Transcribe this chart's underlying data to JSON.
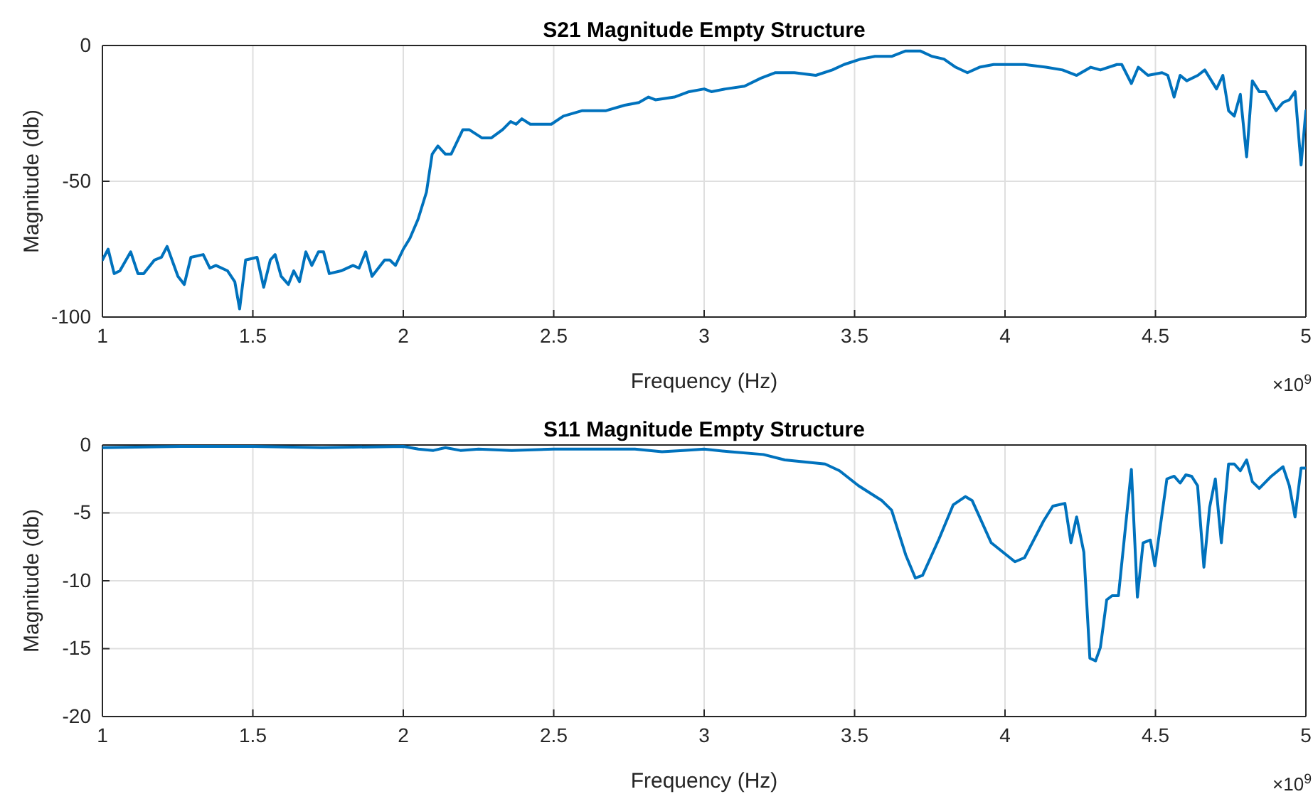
{
  "chart_data": [
    {
      "type": "line",
      "title": "S21 Magnitude Empty Structure",
      "xlabel": "Frequency (Hz)",
      "ylabel": "Magnitude (db)",
      "annotations": [
        "×10$^{9}$"
      ],
      "xlim": [
        1,
        5
      ],
      "xticks": [
        1,
        1.5,
        2,
        2.5,
        3,
        3.5,
        4,
        4.5,
        5
      ],
      "ylim": [
        -100,
        0
      ],
      "yticks": [
        -100,
        -50,
        0
      ],
      "grid": true,
      "marker": "none",
      "line_style": "solid",
      "series": [
        {
          "color": "#0072bd",
          "x": [
            1.0,
            1.019,
            1.039,
            1.058,
            1.094,
            1.118,
            1.137,
            1.173,
            1.196,
            1.215,
            1.251,
            1.272,
            1.294,
            1.335,
            1.357,
            1.377,
            1.416,
            1.44,
            1.456,
            1.476,
            1.514,
            1.536,
            1.558,
            1.574,
            1.594,
            1.618,
            1.636,
            1.655,
            1.676,
            1.696,
            1.718,
            1.735,
            1.754,
            1.793,
            1.833,
            1.853,
            1.875,
            1.896,
            1.938,
            1.955,
            1.974,
            2.0,
            2.022,
            2.049,
            2.077,
            2.096,
            2.115,
            2.14,
            2.159,
            2.198,
            2.219,
            2.261,
            2.293,
            2.33,
            2.357,
            2.375,
            2.394,
            2.422,
            2.492,
            2.532,
            2.595,
            2.634,
            2.674,
            2.736,
            2.783,
            2.815,
            2.838,
            2.901,
            2.95,
            3.0,
            3.024,
            3.071,
            3.134,
            3.189,
            3.237,
            3.3,
            3.371,
            3.426,
            3.465,
            3.52,
            3.568,
            3.623,
            3.67,
            3.718,
            3.757,
            3.797,
            3.836,
            3.875,
            3.915,
            3.962,
            4.017,
            4.065,
            4.136,
            4.191,
            4.238,
            4.285,
            4.317,
            4.372,
            4.388,
            4.42,
            4.443,
            4.475,
            4.522,
            4.541,
            4.562,
            4.582,
            4.604,
            4.641,
            4.664,
            4.703,
            4.724,
            4.743,
            4.762,
            4.782,
            4.803,
            4.822,
            4.845,
            4.866,
            4.901,
            4.924,
            4.945,
            4.964,
            4.984,
            5.0
          ],
          "values": [
            -79,
            -75,
            -84,
            -83,
            -76,
            -84,
            -84,
            -79,
            -78,
            -74,
            -85,
            -88,
            -78,
            -77,
            -82,
            -81,
            -83,
            -87,
            -97,
            -79,
            -78,
            -89,
            -79,
            -77,
            -85,
            -88,
            -83,
            -87,
            -76,
            -81,
            -76,
            -76,
            -84,
            -83,
            -81,
            -82,
            -76,
            -85,
            -79,
            -79,
            -81,
            -75,
            -71,
            -64,
            -54,
            -40,
            -37,
            -40,
            -40,
            -31,
            -31,
            -34,
            -34,
            -31,
            -28,
            -29,
            -27,
            -29,
            -29,
            -26,
            -24,
            -24,
            -24,
            -22,
            -21,
            -19,
            -20,
            -19,
            -17,
            -16,
            -17,
            -16,
            -15,
            -12,
            -10,
            -10,
            -11,
            -9,
            -7,
            -5,
            -4,
            -4,
            -2,
            -2,
            -4,
            -5,
            -8,
            -10,
            -8,
            -7,
            -7,
            -7,
            -8,
            -9,
            -11,
            -8,
            -9,
            -7,
            -7,
            -14,
            -8,
            -11,
            -10,
            -11,
            -19,
            -11,
            -13,
            -11,
            -9,
            -16,
            -11,
            -24,
            -26,
            -18,
            -41,
            -13,
            -17,
            -17,
            -24,
            -21,
            -20,
            -17,
            -44,
            -24
          ]
        }
      ]
    },
    {
      "type": "line",
      "title": "S11 Magnitude Empty Structure",
      "xlabel": "Frequency (Hz)",
      "ylabel": "Magnitude (db)",
      "annotations": [
        "×10$^{9}$"
      ],
      "xlim": [
        1,
        5
      ],
      "xticks": [
        1,
        1.5,
        2,
        2.5,
        3,
        3.5,
        4,
        4.5,
        5
      ],
      "ylim": [
        -20,
        0
      ],
      "yticks": [
        -20,
        -15,
        -10,
        -5,
        0
      ],
      "grid": true,
      "marker": "none",
      "line_style": "solid",
      "series": [
        {
          "color": "#0072bd",
          "x": [
            1,
            1.26,
            1.5,
            1.73,
            2,
            2.05,
            2.1,
            2.14,
            2.19,
            2.25,
            2.36,
            2.5,
            2.67,
            2.77,
            2.86,
            2.93,
            3.0,
            3.087,
            3.197,
            3.268,
            3.402,
            3.45,
            3.513,
            3.591,
            3.623,
            3.67,
            3.702,
            3.726,
            3.781,
            3.828,
            3.868,
            3.891,
            3.954,
            4.033,
            4.065,
            4.128,
            4.159,
            4.199,
            4.219,
            4.238,
            4.262,
            4.282,
            4.301,
            4.317,
            4.338,
            4.356,
            4.377,
            4.42,
            4.44,
            4.459,
            4.483,
            4.498,
            4.538,
            4.562,
            4.582,
            4.601,
            4.62,
            4.64,
            4.661,
            4.68,
            4.699,
            4.719,
            4.743,
            4.762,
            4.782,
            4.803,
            4.822,
            4.845,
            4.885,
            4.924,
            4.945,
            4.964,
            4.984,
            5.0
          ],
          "values": [
            -0.2,
            -0.1,
            -0.1,
            -0.2,
            -0.1,
            -0.3,
            -0.4,
            -0.2,
            -0.4,
            -0.3,
            -0.4,
            -0.3,
            -0.3,
            -0.3,
            -0.5,
            -0.4,
            -0.3,
            -0.5,
            -0.7,
            -1.1,
            -1.4,
            -1.9,
            -3.0,
            -4.1,
            -4.8,
            -8.1,
            -9.8,
            -9.6,
            -6.9,
            -4.4,
            -3.8,
            -4.1,
            -7.2,
            -8.6,
            -8.3,
            -5.6,
            -4.5,
            -4.3,
            -7.2,
            -5.3,
            -7.9,
            -15.7,
            -15.9,
            -14.9,
            -11.4,
            -11.1,
            -11.1,
            -1.8,
            -11.2,
            -7.2,
            -7.0,
            -8.9,
            -2.5,
            -2.3,
            -2.8,
            -2.2,
            -2.3,
            -3.0,
            -9.0,
            -4.6,
            -2.5,
            -7.2,
            -1.4,
            -1.4,
            -1.9,
            -1.1,
            -2.7,
            -3.2,
            -2.3,
            -1.6,
            -3.0,
            -5.3,
            -1.7,
            -1.7
          ]
        }
      ]
    }
  ]
}
